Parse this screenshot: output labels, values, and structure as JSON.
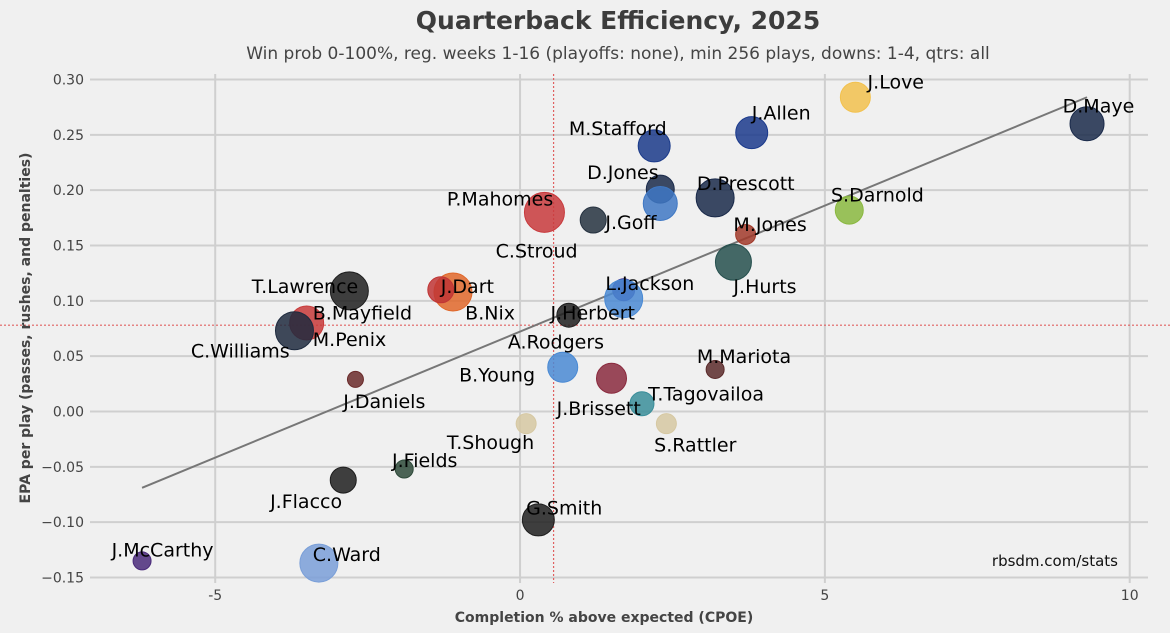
{
  "chart_data": {
    "type": "scatter",
    "title": "Quarterback Efficiency, 2025",
    "subtitle": "Win prob 0-100%, reg. weeks 1-16 (playoffs: none), min 256 plays, downs: 1-4, qtrs: all",
    "xlabel": "Completion % above expected (CPOE)",
    "ylabel": "EPA per play (passes, rushes, and penalties)",
    "xlim": [
      -7.3,
      10.3
    ],
    "ylim": [
      -0.155,
      0.305
    ],
    "xticks": [
      -5,
      0,
      5,
      10
    ],
    "yticks": [
      0.3,
      0.25,
      0.2,
      0.15,
      0.1,
      0.05,
      0.0,
      -0.05,
      -0.1,
      -0.15
    ],
    "xtick_labels": [
      "-5",
      "0",
      "5",
      "10"
    ],
    "ytick_labels": [
      "0.30",
      "0.25",
      "0.20",
      "0.15",
      "0.10",
      "0.05",
      "0.00",
      "−0.05",
      "−0.10",
      "−0.15"
    ],
    "grid": true,
    "reference_lines": {
      "x": 0.55,
      "y": 0.078,
      "color": "#e06060"
    },
    "trend_line": {
      "x": [
        -6.2,
        9.3
      ],
      "y": [
        -0.069,
        0.284
      ],
      "color": "#777777"
    },
    "source": "rbsdm.com/stats",
    "points": [
      {
        "name": "J.Love",
        "x": 5.5,
        "y": 0.284,
        "size": 15,
        "color": "#f2c14e"
      },
      {
        "name": "D.Maye",
        "x": 9.3,
        "y": 0.26,
        "size": 17,
        "color": "#1a2a4a"
      },
      {
        "name": "J.Allen",
        "x": 3.8,
        "y": 0.252,
        "size": 16,
        "color": "#1b3a8c"
      },
      {
        "name": "M.Stafford",
        "x": 2.2,
        "y": 0.24,
        "size": 16,
        "color": "#1a3a8a"
      },
      {
        "name": "D.Jones",
        "x": 2.3,
        "y": 0.201,
        "size": 14,
        "color": "#1a2a4a"
      },
      {
        "name": "D.Prescott",
        "x": 3.2,
        "y": 0.193,
        "size": 19,
        "color": "#1a2a4a"
      },
      {
        "name": "S.Darnold",
        "x": 5.4,
        "y": 0.182,
        "size": 14,
        "color": "#8ab840"
      },
      {
        "name": "P.Mahomes",
        "x": 0.4,
        "y": 0.18,
        "size": 20,
        "color": "#c8393c"
      },
      {
        "name": "J.Goff",
        "x": 1.2,
        "y": 0.173,
        "size": 13,
        "color": "#263240"
      },
      {
        "name": "C.Stroud",
        "x": 2.3,
        "y": 0.188,
        "size": 17,
        "color": "#3f78c4"
      },
      {
        "name": "M.Jones",
        "x": 3.7,
        "y": 0.16,
        "size": 10,
        "color": "#a13a2a"
      },
      {
        "name": "J.Hurts",
        "x": 3.5,
        "y": 0.135,
        "size": 18,
        "color": "#26504e"
      },
      {
        "name": "T.Lawrence",
        "x": -2.8,
        "y": 0.109,
        "size": 19,
        "color": "#1e1e1e"
      },
      {
        "name": "J.Dart",
        "x": -1.1,
        "y": 0.108,
        "size": 19,
        "color": "#e0672a"
      },
      {
        "name": "J.Dart-2",
        "x": -1.3,
        "y": 0.11,
        "size": 13,
        "color": "#c03535"
      },
      {
        "name": "L.Jackson",
        "x": 1.7,
        "y": 0.11,
        "size": 11,
        "color": "#3a2a8a"
      },
      {
        "name": "B.Nix",
        "x": 1.7,
        "y": 0.102,
        "size": 19,
        "color": "#4a8ad4"
      },
      {
        "name": "B.Mayfield",
        "x": -3.5,
        "y": 0.08,
        "size": 17,
        "color": "#c83a3a"
      },
      {
        "name": "M.Penix",
        "x": -3.7,
        "y": 0.073,
        "size": 19,
        "color": "#1e2a3e"
      },
      {
        "name": "J.Herbert",
        "x": 0.8,
        "y": 0.087,
        "size": 12,
        "color": "#1e1e1e"
      },
      {
        "name": "A.Rodgers",
        "x": 0.7,
        "y": 0.04,
        "size": 15,
        "color": "#4a8ad4"
      },
      {
        "name": "B.Young",
        "x": 1.5,
        "y": 0.03,
        "size": 15,
        "color": "#8a2a3e"
      },
      {
        "name": "M.Mariota",
        "x": 3.2,
        "y": 0.038,
        "size": 9,
        "color": "#5a2a2a"
      },
      {
        "name": "J.Daniels",
        "x": -2.7,
        "y": 0.029,
        "size": 8,
        "color": "#6a2a2a"
      },
      {
        "name": "T.Tagovailoa",
        "x": 2.0,
        "y": 0.007,
        "size": 12,
        "color": "#3a8e9a"
      },
      {
        "name": "J.Brissett",
        "x": 2.4,
        "y": -0.011,
        "size": 10,
        "color": "#d6c8a2"
      },
      {
        "name": "T.Shough",
        "x": 0.1,
        "y": -0.011,
        "size": 10,
        "color": "#d6c8a2"
      },
      {
        "name": "J.Fields",
        "x": -1.9,
        "y": -0.052,
        "size": 9,
        "color": "#2e4a3a"
      },
      {
        "name": "J.Flacco",
        "x": -2.9,
        "y": -0.062,
        "size": 13,
        "color": "#1e1e1e"
      },
      {
        "name": "G.Smith",
        "x": 0.3,
        "y": -0.098,
        "size": 16,
        "color": "#1e1e1e"
      },
      {
        "name": "J.McCarthy",
        "x": -6.2,
        "y": -0.135,
        "size": 9,
        "color": "#4a2a7a"
      },
      {
        "name": "C.Ward",
        "x": -3.3,
        "y": -0.137,
        "size": 19,
        "color": "#7a9fd8"
      }
    ],
    "labels": [
      {
        "text": "J.Love",
        "x": 5.7,
        "y": 0.292
      },
      {
        "text": "D.Maye",
        "x": 8.9,
        "y": 0.27
      },
      {
        "text": "J.Allen",
        "x": 3.8,
        "y": 0.264
      },
      {
        "text": "M.Stafford",
        "x": 0.8,
        "y": 0.25
      },
      {
        "text": "D.Jones",
        "x": 1.1,
        "y": 0.21
      },
      {
        "text": "D.Prescott",
        "x": 2.9,
        "y": 0.2
      },
      {
        "text": "S.Darnold",
        "x": 5.1,
        "y": 0.19
      },
      {
        "text": "P.Mahomes",
        "x": -1.2,
        "y": 0.186
      },
      {
        "text": "J.Goff",
        "x": 1.4,
        "y": 0.165
      },
      {
        "text": "M.Jones",
        "x": 3.5,
        "y": 0.163
      },
      {
        "text": "C.Stroud",
        "x": -0.4,
        "y": 0.139
      },
      {
        "text": "L.Jackson",
        "x": 1.4,
        "y": 0.11
      },
      {
        "text": "J.Hurts",
        "x": 3.5,
        "y": 0.107
      },
      {
        "text": "T.Lawrence",
        "x": -4.4,
        "y": 0.107
      },
      {
        "text": "J.Dart",
        "x": -1.3,
        "y": 0.107
      },
      {
        "text": "B.Mayfield",
        "x": -3.4,
        "y": 0.083
      },
      {
        "text": "B.Nix",
        "x": -0.9,
        "y": 0.083
      },
      {
        "text": "J.Herbert",
        "x": 0.5,
        "y": 0.083
      },
      {
        "text": "M.Penix",
        "x": -3.4,
        "y": 0.059
      },
      {
        "text": "A.Rodgers",
        "x": -0.2,
        "y": 0.057
      },
      {
        "text": "C.Williams",
        "x": -5.4,
        "y": 0.049
      },
      {
        "text": "M.Mariota",
        "x": 2.9,
        "y": 0.044
      },
      {
        "text": "B.Young",
        "x": -1.0,
        "y": 0.027
      },
      {
        "text": "T.Tagovailoa",
        "x": 2.1,
        "y": 0.01
      },
      {
        "text": "J.Daniels",
        "x": -2.9,
        "y": 0.003
      },
      {
        "text": "J.Brissett",
        "x": 0.6,
        "y": -0.003
      },
      {
        "text": "T.Shough",
        "x": -1.2,
        "y": -0.034
      },
      {
        "text": "S.Rattler",
        "x": 2.2,
        "y": -0.036
      },
      {
        "text": "J.Fields",
        "x": -2.1,
        "y": -0.05
      },
      {
        "text": "J.Flacco",
        "x": -4.1,
        "y": -0.087
      },
      {
        "text": "G.Smith",
        "x": 0.1,
        "y": -0.093
      },
      {
        "text": "C.Ward",
        "x": -3.4,
        "y": -0.135
      },
      {
        "text": "J.McCarthy",
        "x": -6.7,
        "y": -0.131
      }
    ]
  }
}
